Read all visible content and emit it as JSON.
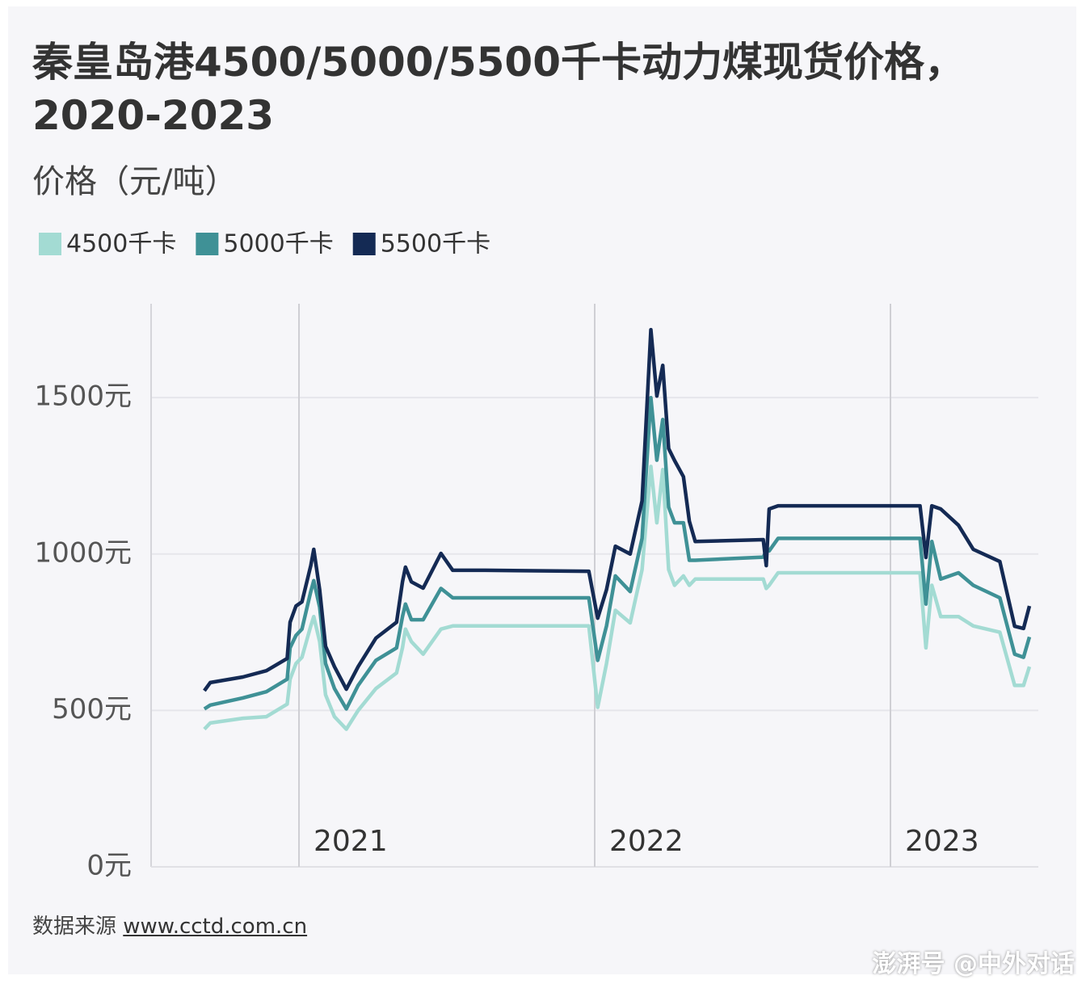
{
  "chart_data": {
    "type": "line",
    "title": [
      "秦皇岛港4500/5000/5500千卡动力煤现货价格，",
      "2020-2023"
    ],
    "subtitle": "价格（元/吨）",
    "source_label": "数据来源",
    "source_link": "www.cctd.com.cn",
    "watermark": "澎湃号 @中外对话",
    "x": [
      2020.68,
      2020.7,
      2020.81,
      2020.89,
      2020.96,
      2020.97,
      2020.99,
      2021.01,
      2021.04,
      2021.05,
      2021.07,
      2021.09,
      2021.12,
      2021.16,
      2021.2,
      2021.26,
      2021.33,
      2021.35,
      2021.36,
      2021.38,
      2021.42,
      2021.48,
      2021.52,
      2021.63,
      2021.98,
      2022.01,
      2022.04,
      2022.07,
      2022.12,
      2022.16,
      2022.19,
      2022.21,
      2022.23,
      2022.25,
      2022.27,
      2022.3,
      2022.32,
      2022.34,
      2022.57,
      2022.58,
      2022.59,
      2022.62,
      2023.1,
      2023.12,
      2023.14,
      2023.17,
      2023.23,
      2023.28,
      2023.37,
      2023.42,
      2023.45,
      2023.47
    ],
    "series": [
      {
        "name": "4500千卡",
        "color": "#a3dbd3",
        "values": [
          440,
          460,
          475,
          480,
          520,
          600,
          650,
          670,
          770,
          800,
          720,
          550,
          480,
          440,
          500,
          570,
          620,
          700,
          760,
          720,
          680,
          760,
          770,
          770,
          770,
          510,
          650,
          820,
          780,
          950,
          1280,
          1100,
          1270,
          950,
          900,
          930,
          900,
          920,
          920,
          890,
          900,
          940,
          940,
          700,
          900,
          800,
          800,
          770,
          750,
          580,
          580,
          640
        ]
      },
      {
        "name": "5000千卡",
        "color": "#3f9196",
        "values": [
          505,
          517,
          540,
          560,
          600,
          700,
          740,
          760,
          880,
          915,
          830,
          650,
          570,
          505,
          580,
          660,
          700,
          800,
          840,
          790,
          790,
          890,
          860,
          860,
          860,
          660,
          770,
          930,
          880,
          1050,
          1500,
          1300,
          1430,
          1150,
          1100,
          1100,
          980,
          980,
          990,
          1010,
          1010,
          1050,
          1050,
          840,
          1040,
          920,
          940,
          900,
          860,
          680,
          670,
          735
        ]
      },
      {
        "name": "5500千卡",
        "color": "#142a54",
        "values": [
          563,
          589,
          607,
          627,
          666,
          782,
          834,
          847,
          963,
          1015,
          886,
          705,
          640,
          568,
          640,
          731,
          782,
          911,
          958,
          911,
          891,
          1002,
          948,
          948,
          945,
          795,
          886,
          1025,
          1000,
          1170,
          1717,
          1505,
          1603,
          1337,
          1299,
          1247,
          1105,
          1040,
          1046,
          963,
          1144,
          1154,
          1154,
          989,
          1154,
          1144,
          1092,
          1015,
          976,
          769,
          762,
          834
        ]
      }
    ],
    "xlim": [
      2020.5,
      2023.5
    ],
    "xticks": [
      2021,
      2022,
      2023
    ],
    "ylim": [
      0,
      1800
    ],
    "yticks": [
      {
        "value": 0,
        "label": "0元"
      },
      {
        "value": 500,
        "label": "500元"
      },
      {
        "value": 1000,
        "label": "1000元"
      },
      {
        "value": 1500,
        "label": "1500元"
      }
    ],
    "grid": true,
    "legend": "top-left"
  }
}
